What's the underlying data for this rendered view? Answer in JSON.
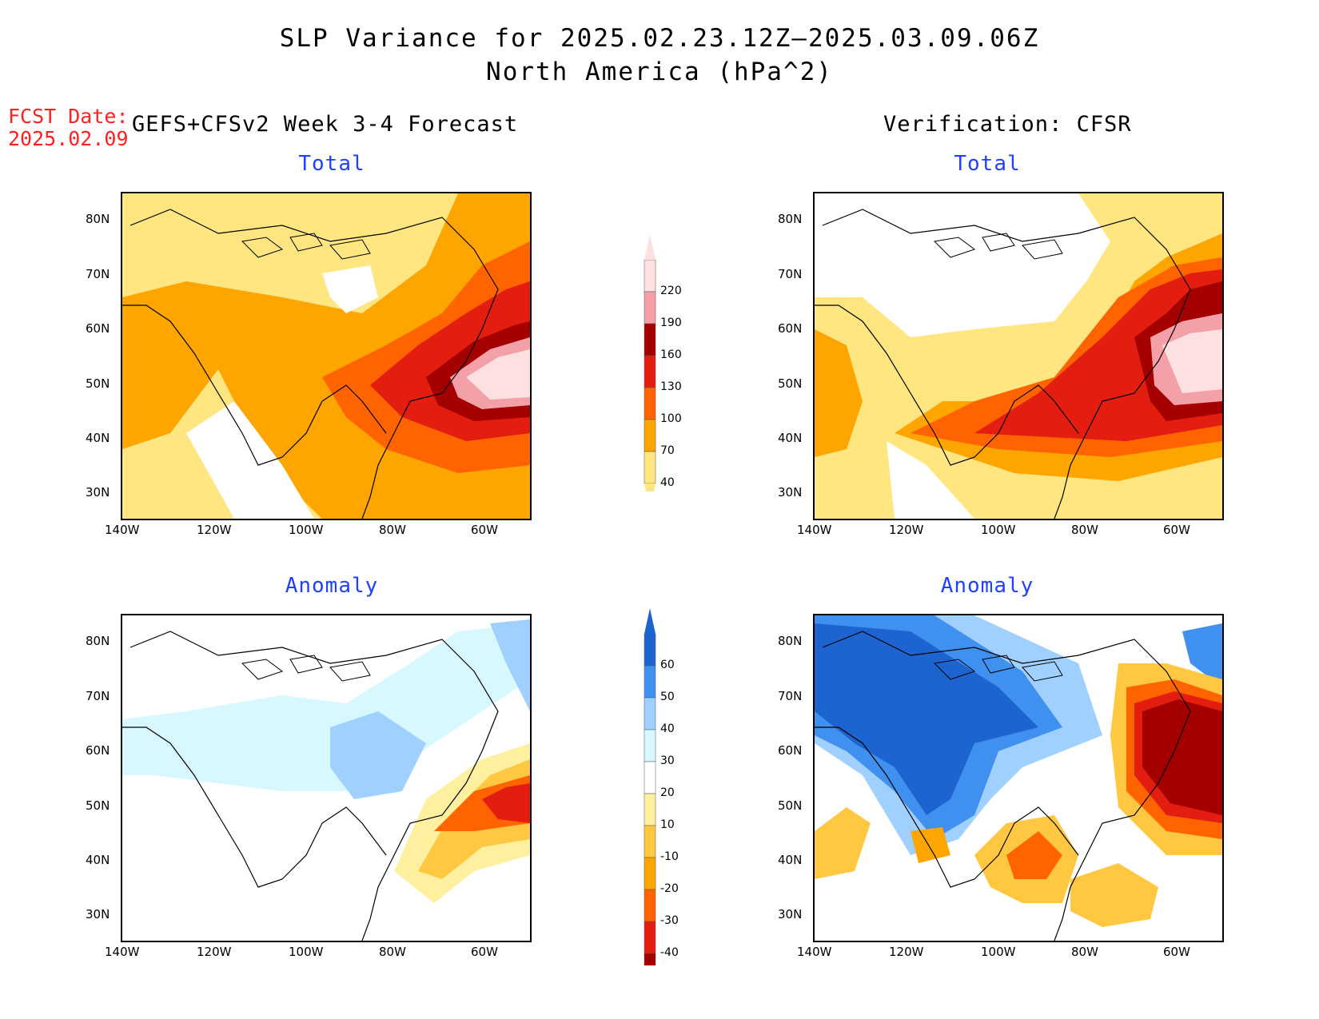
{
  "title": "SLP Variance for 2025.02.23.12Z—2025.03.09.06Z",
  "subtitle": "North America (hPa^2)",
  "fcst_date_label": "FCST Date:",
  "fcst_date": "2025.02.09",
  "left_heading": "GEFS+CFSv2 Week 3-4 Forecast",
  "right_heading": "Verification: CFSR",
  "panels": {
    "tl": {
      "title": "Total"
    },
    "tr": {
      "title": "Total"
    },
    "bl": {
      "title": "Anomaly"
    },
    "br": {
      "title": "Anomaly"
    }
  },
  "lat_ticks": [
    "80N",
    "70N",
    "60N",
    "50N",
    "40N",
    "30N"
  ],
  "lon_ticks": [
    "140W",
    "120W",
    "100W",
    "80W",
    "60W"
  ],
  "total_colorbar": {
    "levels": [
      "40",
      "70",
      "100",
      "130",
      "160",
      "190",
      "220"
    ],
    "colors": [
      "#ffe680",
      "#ffa500",
      "#ff6400",
      "#e31e10",
      "#a50000",
      "#f4a0a8",
      "#fde0e0"
    ]
  },
  "anomaly_colorbar": {
    "levels": [
      "60",
      "50",
      "40",
      "30",
      "20",
      "10",
      "-10",
      "-20",
      "-30",
      "-40"
    ],
    "colors": [
      "#a50000",
      "#e31e10",
      "#ff6400",
      "#ffa500",
      "#ffc840",
      "#fff0a0",
      "#ffffff",
      "#d8f8ff",
      "#a0d0ff",
      "#4090f0",
      "#1e64d0"
    ]
  }
}
